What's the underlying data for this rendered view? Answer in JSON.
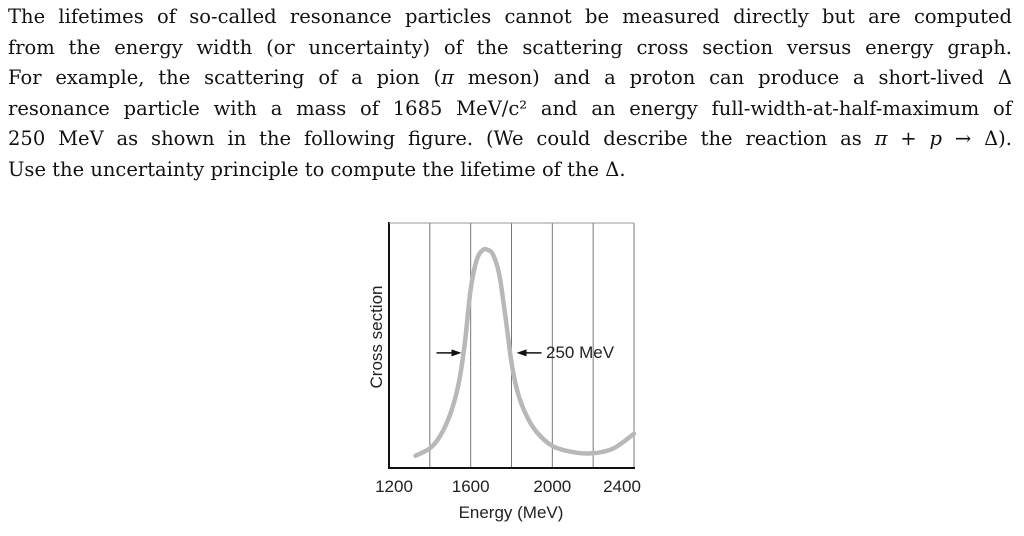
{
  "problem": {
    "lines": [
      [
        {
          "t": "The lifetimes of so-called resonance particles cannot be measured directly but are computed"
        }
      ],
      [
        {
          "t": "from the energy width (or uncertainty) of the scattering cross section versus energy graph."
        }
      ],
      [
        {
          "t": "For example, the scattering of a pion ("
        },
        {
          "t": "π",
          "i": true
        },
        {
          "t": " meson) and a proton can produce a short-lived Δ"
        }
      ],
      [
        {
          "t": "resonance particle with a mass of 1685 MeV/c² and an energy full-width-at-half-maximum of"
        }
      ],
      [
        {
          "t": "250 MeV as shown in the following figure. (We could describe the reaction as "
        },
        {
          "t": "π",
          "i": true
        },
        {
          "t": " + "
        },
        {
          "t": "p",
          "i": true
        },
        {
          "t": " → Δ)."
        }
      ],
      [
        {
          "t": "Use the uncertainty principle to compute the lifetime of the Δ."
        }
      ]
    ]
  },
  "chart_data": {
    "type": "line",
    "title": "",
    "xlabel": "Energy (MeV)",
    "ylabel": "Cross section",
    "xlim": [
      1200,
      2400
    ],
    "ylim": [
      0,
      1
    ],
    "x_ticks": [
      1200,
      1600,
      2000,
      2400
    ],
    "x_tick_labels": [
      "1200",
      "1600",
      "2000",
      "2400"
    ],
    "vertical_gridlines": [
      1400,
      1600,
      1800,
      2000,
      2200
    ],
    "grid": true,
    "series": [
      {
        "x": [
          1330,
          1400,
          1450,
          1500,
          1540,
          1570,
          1600,
          1630,
          1660,
          1685,
          1710,
          1740,
          1770,
          1800,
          1830,
          1870,
          1920,
          2000,
          2100,
          2200,
          2300,
          2400
        ],
        "y": [
          0.05,
          0.08,
          0.13,
          0.22,
          0.34,
          0.5,
          0.73,
          0.85,
          0.89,
          0.89,
          0.87,
          0.79,
          0.62,
          0.43,
          0.31,
          0.22,
          0.15,
          0.09,
          0.065,
          0.06,
          0.08,
          0.14
        ],
        "color": "#b8b8b8"
      }
    ],
    "annotation": {
      "text": "250 MeV",
      "fwhm_from": 1560,
      "fwhm_to": 1810,
      "level": 0.47
    }
  }
}
